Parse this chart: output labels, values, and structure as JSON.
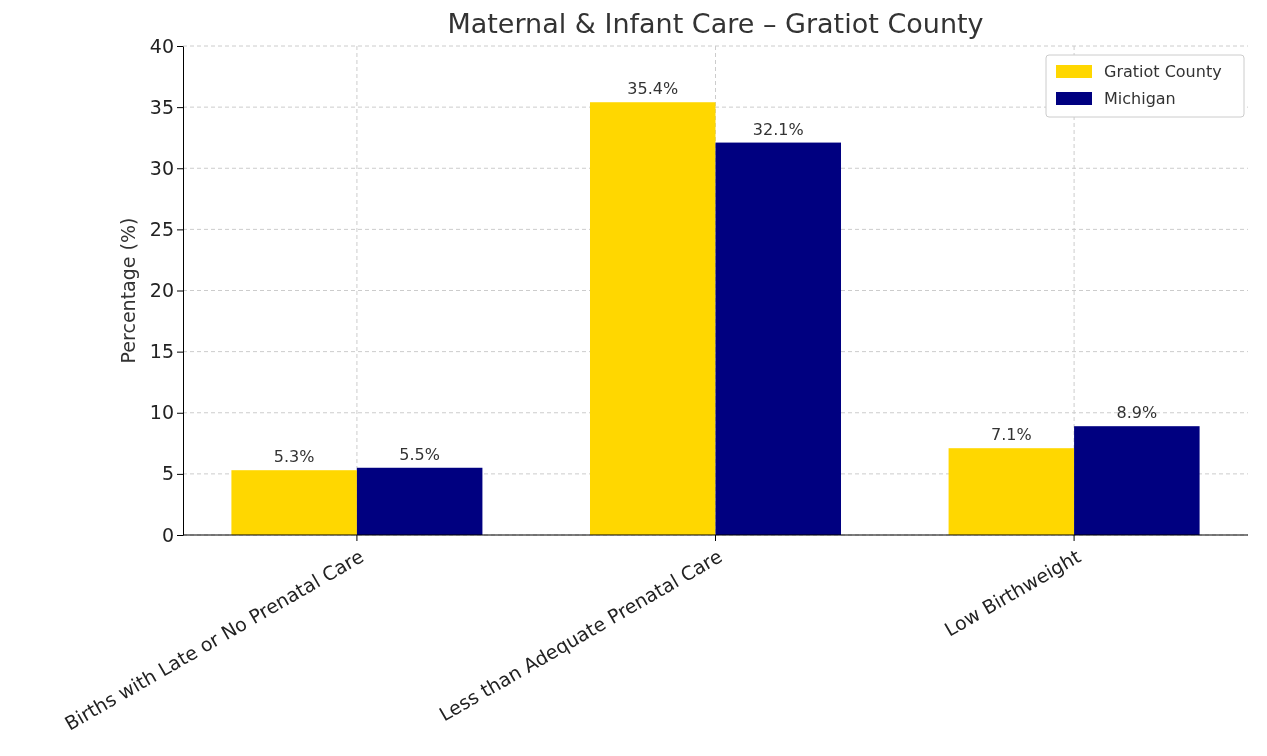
{
  "chart_data": {
    "type": "bar",
    "title": "Maternal & Infant Care – Gratiot County",
    "ylabel": "Percentage (%)",
    "categories": [
      "Births with Late or No Prenatal Care",
      "Less than Adequate Prenatal Care",
      "Low Birthweight"
    ],
    "series": [
      {
        "name": "Gratiot County",
        "color": "#ffd700",
        "values": [
          5.3,
          35.4,
          7.1
        ],
        "value_labels": [
          "5.3%",
          "35.4%",
          "7.1%"
        ]
      },
      {
        "name": "Michigan",
        "color": "#000080",
        "values": [
          5.5,
          32.1,
          8.9
        ],
        "value_labels": [
          "5.5%",
          "32.1%",
          "8.9%"
        ]
      }
    ],
    "ylim": [
      0,
      40
    ],
    "yticks": [
      0,
      5,
      10,
      15,
      20,
      25,
      30,
      35,
      40
    ],
    "grid": true,
    "legend": "top right"
  }
}
